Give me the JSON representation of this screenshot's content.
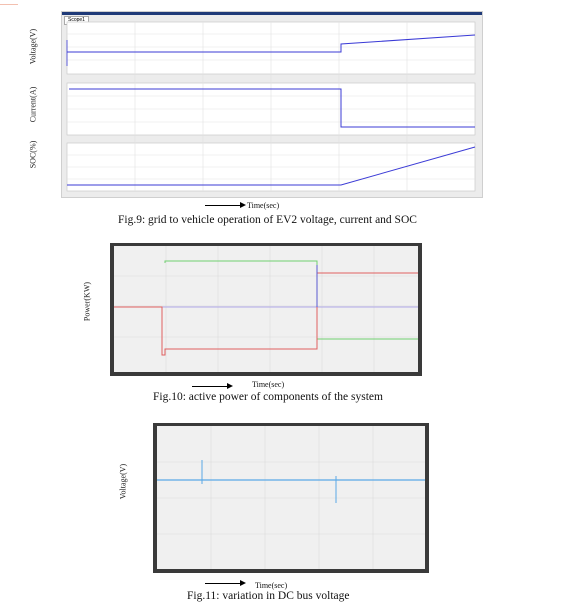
{
  "fig9": {
    "window_tab": "Scope1",
    "ylabels": [
      "Voltage(V)",
      "Current(A)",
      "SOC(%)"
    ],
    "xlabel": "Time(sec)",
    "caption": "Fig.9: grid to vehicle operation of EV2 voltage, current and SOC"
  },
  "fig10": {
    "ylabel": "Power(KW)",
    "xlabel": "Time(sec)",
    "caption": "Fig.10: active power of components of the system"
  },
  "fig11": {
    "ylabel": "Voltage(V)",
    "xlabel": "Time(sec)",
    "caption": "Fig.11: variation in DC bus voltage"
  },
  "colors": {
    "trace_blue": "#3b3bd6",
    "trace_red": "#e06060",
    "trace_green": "#70d070",
    "trace_lightblue": "#5aa8e6",
    "trace_purple": "#b0a8e8",
    "plot_bg": "#f0f0f0",
    "scope_bar": "#1f3a78"
  },
  "chart_data": [
    {
      "type": "line",
      "title": "",
      "panels": [
        {
          "ylabel": "Voltage(V)",
          "series": [
            {
              "points": [
                [
                  0,
                  0.3
                ],
                [
                  0.62,
                  0.3
                ],
                [
                  0.62,
                  0.45
                ],
                [
                  1,
                  0.62
                ]
              ]
            }
          ]
        },
        {
          "ylabel": "Current(A)",
          "series": [
            {
              "points": [
                [
                  0,
                  0.85
                ],
                [
                  0.62,
                  0.85
                ],
                [
                  0.62,
                  0.12
                ],
                [
                  1,
                  0.12
                ]
              ]
            }
          ]
        },
        {
          "ylabel": "SOC(%)",
          "series": [
            {
              "points": [
                [
                  0,
                  0.28
                ],
                [
                  0.62,
                  0.28
                ],
                [
                  1,
                  0.85
                ]
              ]
            }
          ]
        }
      ],
      "xlabel": "Time(sec)"
    },
    {
      "type": "line",
      "title": "",
      "ylabel": "Power(KW)",
      "xlabel": "Time(sec)",
      "series": [
        {
          "color": "#70d070",
          "points": [
            [
              0.24,
              0.8
            ],
            [
              0.24,
              1.0
            ],
            [
              0.66,
              1.0
            ],
            [
              0.66,
              0.78
            ],
            [
              0.66,
              -0.28
            ],
            [
              1,
              -0.28
            ]
          ]
        },
        {
          "color": "#e06060",
          "points": [
            [
              0,
              0
            ],
            [
              0.16,
              0
            ],
            [
              0.16,
              -0.45
            ],
            [
              0.66,
              -0.45
            ],
            [
              0.66,
              0.85
            ],
            [
              1,
              0.85
            ]
          ]
        },
        {
          "color": "#b0a8e8",
          "points": [
            [
              0,
              0
            ],
            [
              1,
              0
            ]
          ]
        }
      ]
    },
    {
      "type": "line",
      "title": "",
      "ylabel": "Voltage(V)",
      "xlabel": "Time(sec)",
      "series": [
        {
          "color": "#5aa8e6",
          "points": [
            [
              0,
              0
            ],
            [
              1,
              0
            ]
          ],
          "spikes": [
            [
              0.17,
              0.25
            ],
            [
              0.67,
              -0.45
            ]
          ]
        }
      ]
    }
  ]
}
